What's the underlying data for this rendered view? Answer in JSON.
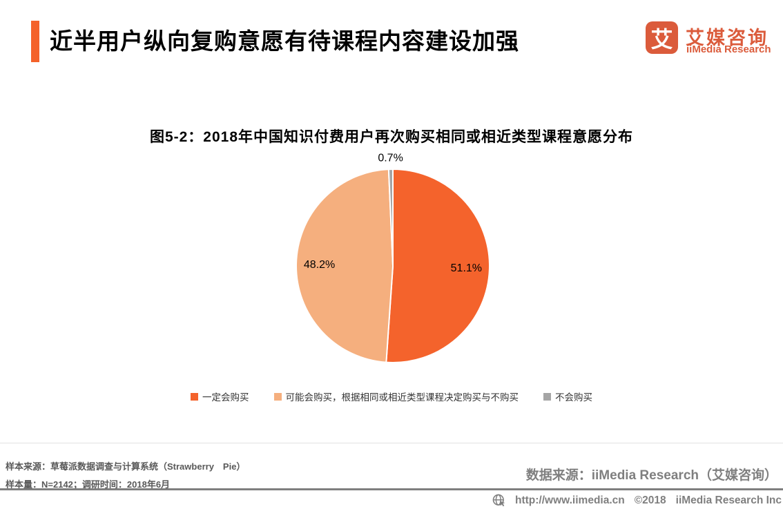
{
  "header": {
    "title": "近半用户纵向复购意愿有待课程内容建设加强",
    "accent_color": "#F4622A",
    "logo": {
      "icon_char": "艾",
      "brand_cn": "艾媒咨询",
      "brand_en": "iiMedia Research",
      "brand_color": "#DB5B3B"
    }
  },
  "chart_data": {
    "type": "pie",
    "title": "图5-2：2018年中国知识付费用户再次购买相同或相近类型课程意愿分布",
    "slices": [
      {
        "label": "一定会购买",
        "value": 51.1,
        "color": "#F4632C"
      },
      {
        "label": "可能会购买，根据相同或相近类型课程决定购买与不购买",
        "value": 48.2,
        "color": "#F5AF7E"
      },
      {
        "label": "不会购买",
        "value": 0.7,
        "color": "#A5A5A5"
      }
    ],
    "value_suffix": "%",
    "start_angle_deg": 0,
    "direction": "clockwise",
    "legend_position": "bottom",
    "slice_border_color": "#FFFFFF"
  },
  "footer": {
    "source_line1": "样本来源：草莓派数据调查与计算系统（Strawberry　Pie）",
    "source_line2": "样本量：N=2142；调研时间：2018年6月",
    "data_source": "数据来源：iiMedia Research（艾媒咨询）",
    "website": "http://www.iimedia.cn",
    "copyright": "©2018",
    "company": "iiMedia Research Inc",
    "bar_color": "#7F7F7F"
  }
}
